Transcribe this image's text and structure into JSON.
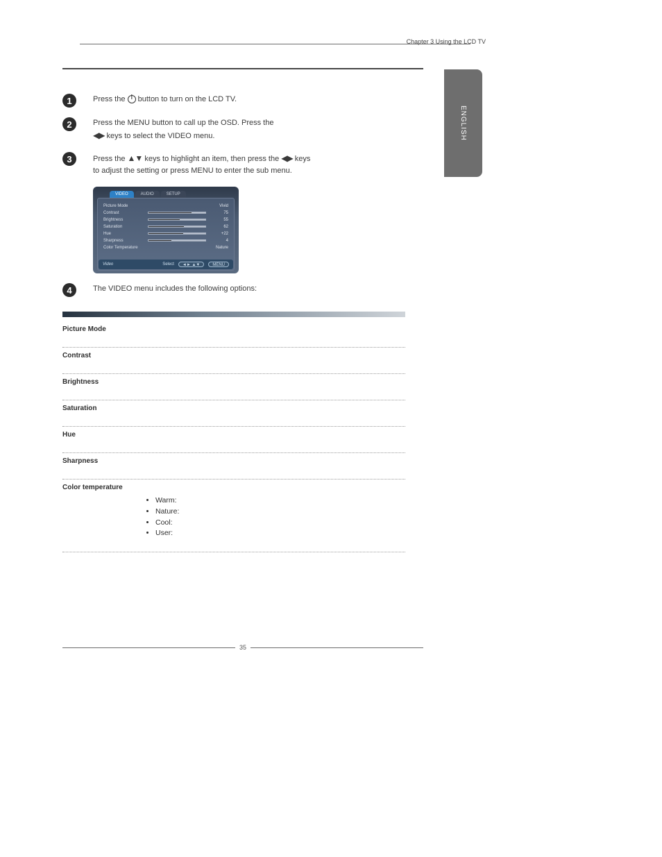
{
  "header": {
    "chapter": "Chapter 3 Using the LCD TV"
  },
  "language_tab": "ENGLISH",
  "steps": {
    "s1": {
      "num": "1",
      "text_before": "Press the ",
      "text_after": " button to turn on the LCD TV."
    },
    "s2": {
      "num": "2",
      "line1a": "Press the ",
      "kw1": "MENU",
      "line1b": " button to call up the OSD. Press the",
      "line2a": "",
      "line2b": " keys to select the ",
      "kw2": "VIDEO",
      "line2c": " menu."
    },
    "s3": {
      "num": "3",
      "l1a": "Press the ",
      "l1b": " keys to highlight an item, then press the ",
      "l1c": " keys",
      "l2a": "to adjust the setting or press ",
      "kw": "MENU",
      "l2b": " to enter the sub menu."
    },
    "s4": {
      "num": "4",
      "lead_a": "The ",
      "kw": "VIDEO",
      "lead_b": " menu includes the following options:"
    }
  },
  "osd": {
    "tabs": [
      "VIDEO",
      "AUDIO",
      "SETUP"
    ],
    "active_tab": 0,
    "rows": [
      {
        "label": "Picture Mode",
        "value": "Vivid",
        "slider": null
      },
      {
        "label": "Contrast",
        "value": "75",
        "slider": 75
      },
      {
        "label": "Brightness",
        "value": "55",
        "slider": 55
      },
      {
        "label": "Saturation",
        "value": "62",
        "slider": 62
      },
      {
        "label": "Hue",
        "value": "+22",
        "slider": 61
      },
      {
        "label": "Sharpness",
        "value": "4",
        "slider": 40
      },
      {
        "label": "Color Temperature",
        "value": "Nature",
        "slider": null
      }
    ],
    "footer": {
      "left": "Video",
      "select": "Select",
      "btn1": "◄► ▲▼",
      "btn2": "MENU"
    },
    "colors": {
      "bg_top": "#2f3a4a",
      "bg_bot": "#5a6a80",
      "tab_active": "#2e81c6",
      "footer_bg": "#2e4a66"
    }
  },
  "table": {
    "rows": [
      {
        "term": "Picture Mode"
      },
      {
        "term": "Contrast"
      },
      {
        "term": "Brightness"
      },
      {
        "term": "Saturation"
      },
      {
        "term": "Hue"
      },
      {
        "term": "Sharpness"
      },
      {
        "term": "Color temperature",
        "bullets": [
          "Warm:",
          "Nature:",
          "Cool:",
          "User:"
        ]
      }
    ]
  },
  "page_number": "35"
}
